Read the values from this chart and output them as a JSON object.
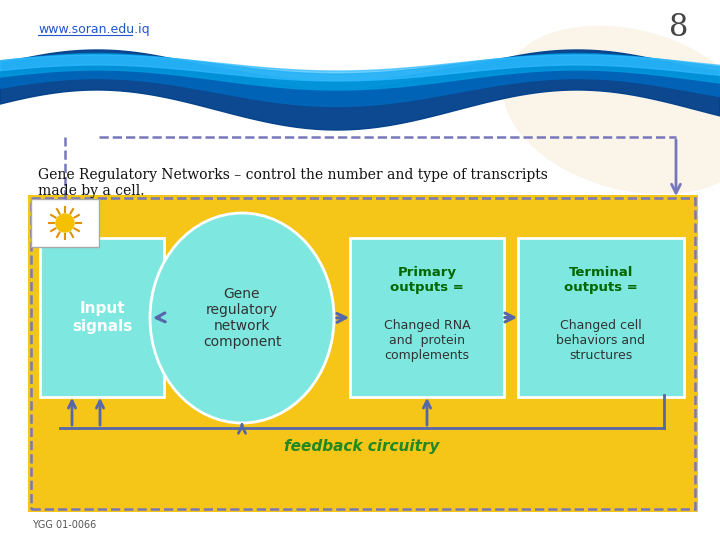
{
  "bg_color": "#ffffff",
  "diagram_bg": "#f5c518",
  "box_fill": "#7ee8e0",
  "arrow_color": "#5566aa",
  "dashed_color": "#7777bb",
  "text_green": "#006600",
  "text_dark": "#333333",
  "feedback_color": "#228822",
  "title_text": "Gene Regulatory Networks – control the number and type of transcripts\nmade by a cell.",
  "caption": "YGG 01-0066",
  "url": "www.soran.edu.iq",
  "page_num": "8",
  "box1_title": "Input\nsignals",
  "box2_title": "Gene\nregulatory\nnetwork\ncomponent",
  "box3_line1": "Primary\noutputs =",
  "box3_line2": "Changed RNA\nand  protein\ncomplements",
  "box4_line1": "Terminal\noutputs =",
  "box4_line2": "Changed cell\nbehaviors and\nstructures",
  "feedback_label": "feedback circuitry",
  "wave_params": [
    [
      20,
      450,
      "#003f8a",
      40,
      0.95
    ],
    [
      14,
      460,
      "#0066bb",
      25,
      0.9
    ],
    [
      10,
      468,
      "#0099dd",
      16,
      0.85
    ],
    [
      8,
      472,
      "#33bbff",
      10,
      0.7
    ]
  ]
}
